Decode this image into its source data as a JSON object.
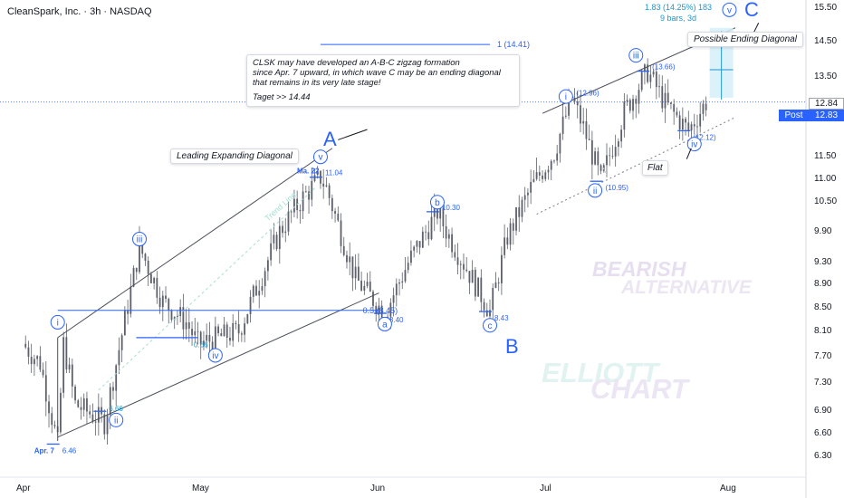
{
  "title": "CleanSpark, Inc. · 3h · NASDAQ",
  "chart_data": {
    "type": "candlestick",
    "symbol": "CleanSpark, Inc.",
    "timeframe": "3h",
    "exchange": "NASDAQ",
    "x_ticks": [
      "Apr",
      "May",
      "Jun",
      "Jul",
      "Aug"
    ],
    "y_ticks": [
      "15.50",
      "14.50",
      "13.50",
      "12.84",
      "11.50",
      "11.00",
      "10.50",
      "9.90",
      "9.30",
      "8.90",
      "8.50",
      "8.10",
      "7.70",
      "7.30",
      "6.90",
      "6.60",
      "6.30"
    ],
    "y_range": [
      6.1,
      15.7
    ],
    "y_scale": "log",
    "last_price": "12.84",
    "post_price": "12.83",
    "post_label": "Post",
    "price_path": [
      {
        "date": "Apr 1",
        "price": 7.9
      },
      {
        "date": "Apr 4",
        "price": 7.6
      },
      {
        "date": "Apr 7",
        "price": 6.46
      },
      {
        "date": "Apr 8",
        "price": 7.9
      },
      {
        "date": "Apr 10",
        "price": 7.0
      },
      {
        "date": "Apr 15",
        "price": 6.75
      },
      {
        "date": "Apr 21",
        "price": 9.6
      },
      {
        "date": "Apr 25",
        "price": 8.6
      },
      {
        "date": "Apr 29",
        "price": 8.25
      },
      {
        "date": "May 1",
        "price": 7.9
      },
      {
        "date": "May 8",
        "price": 8.1
      },
      {
        "date": "May 15",
        "price": 9.9
      },
      {
        "date": "May 19",
        "price": 10.6
      },
      {
        "date": "May 22",
        "price": 11.04
      },
      {
        "date": "May 23",
        "price": 10.8
      },
      {
        "date": "May 28",
        "price": 9.0
      },
      {
        "date": "Jun 2",
        "price": 8.4
      },
      {
        "date": "Jun 6",
        "price": 9.3
      },
      {
        "date": "Jun 11",
        "price": 10.3
      },
      {
        "date": "Jun 13",
        "price": 9.8
      },
      {
        "date": "Jun 17",
        "price": 9.0
      },
      {
        "date": "Jun 20",
        "price": 8.43
      },
      {
        "date": "Jun 23",
        "price": 9.8
      },
      {
        "date": "Jun 27",
        "price": 10.8
      },
      {
        "date": "Jul 1",
        "price": 11.6
      },
      {
        "date": "Jul 4",
        "price": 12.96
      },
      {
        "date": "Jul 6",
        "price": 12.2
      },
      {
        "date": "Jul 9",
        "price": 10.95
      },
      {
        "date": "Jul 13",
        "price": 12.6
      },
      {
        "date": "Jul 17",
        "price": 13.66
      },
      {
        "date": "Jul 20",
        "price": 12.8
      },
      {
        "date": "Jul 24",
        "price": 12.12
      },
      {
        "date": "Jul 27",
        "price": 12.84
      }
    ],
    "price_labels": [
      "6.46",
      "6.66",
      "0.66",
      "11.04",
      "8.40",
      "10.30",
      "8.43",
      "(12.96)",
      "(10.95)",
      "(13.66)",
      "(12.12)"
    ],
    "date_labels": [
      "Apr. 7",
      "Ma. 22"
    ],
    "levels": [
      {
        "label": "0.5 (8.45)",
        "price": 8.45
      },
      {
        "label": "1 (14.41)",
        "price": 14.41
      }
    ],
    "trend_line_label": "Trend Line",
    "wave_labels": {
      "primary": [
        "A",
        "B",
        "C"
      ],
      "impulse": [
        "i",
        "ii",
        "iii",
        "iv",
        "v"
      ],
      "corrective": [
        "a",
        "b",
        "c"
      ]
    },
    "projection": {
      "line1": "1.83 (14.25%) 183",
      "line2": "9 bars, 3d"
    }
  },
  "annotations": {
    "note_lines": [
      "CLSK may have developed an A-B-C zigzag formation",
      "since Apr. 7 upward, in which wave C may be an ending diagonal",
      "that remains in its very late stage!"
    ],
    "target": "Taget >> 14.44",
    "leading_diagonal": "Leading Expanding Diagonal",
    "ending_diagonal": "Possible Ending Diagonal",
    "flat": "Flat"
  },
  "watermark": [
    "BEARISH",
    "ALTERNATIVE",
    "ELLIOTT",
    "CHART"
  ],
  "colors": {
    "wave_blue": "#2962ff",
    "candle": "#5d606b",
    "level": "#2962ff",
    "measure": "#2196c9"
  }
}
